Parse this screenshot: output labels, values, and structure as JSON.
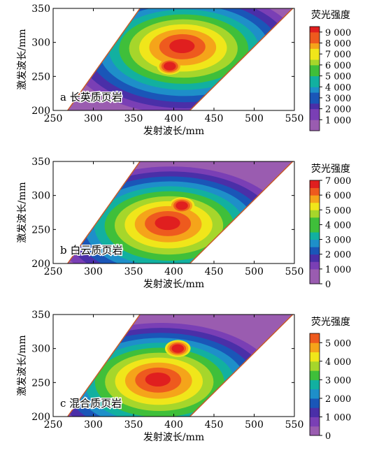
{
  "chart_data": [
    {
      "type": "heatmap",
      "subtype": "excitation-emission matrix contour",
      "panel_label": "a 长英质页岩",
      "xlabel": "发射波长/mm",
      "ylabel": "激发波长/mm",
      "xlim": [
        250,
        550
      ],
      "ylim": [
        200,
        350
      ],
      "x_ticks": [
        250,
        300,
        350,
        400,
        450,
        500,
        550
      ],
      "y_ticks": [
        200,
        250,
        300,
        350
      ],
      "x_tick_labels": [
        "250",
        "300",
        "350",
        "400",
        "450",
        "500",
        "550"
      ],
      "y_tick_labels": [
        "200",
        "250",
        "300",
        "350"
      ],
      "data_region": "parallelogram between emission = excitation + (85..115) and emission = excitation + (195..230) nm",
      "colorbar": {
        "title": "荧光强度",
        "min": 0,
        "max": 9500,
        "tick_values": [
          1000,
          2000,
          3000,
          4000,
          5000,
          6000,
          7000,
          8000,
          9000
        ],
        "tick_labels": [
          "1 000",
          "2 000",
          "3 000",
          "4 000",
          "5 000",
          "6 000",
          "7 000",
          "8 000",
          "9 000"
        ]
      },
      "peak": {
        "emission": 410,
        "excitation": 295,
        "intensity": 9300
      },
      "secondary_peak": {
        "emission": 395,
        "excitation": 265,
        "intensity": 8000
      },
      "grid": false
    },
    {
      "type": "heatmap",
      "subtype": "excitation-emission matrix contour",
      "panel_label": "b 白云质页岩",
      "xlabel": "发射波长/mm",
      "ylabel": "激发波长/mm",
      "xlim": [
        250,
        550
      ],
      "ylim": [
        200,
        350
      ],
      "x_ticks": [
        250,
        300,
        350,
        400,
        450,
        500,
        550
      ],
      "y_ticks": [
        200,
        250,
        300,
        350
      ],
      "x_tick_labels": [
        "250",
        "300",
        "350",
        "400",
        "450",
        "500",
        "550"
      ],
      "y_tick_labels": [
        "200",
        "250",
        "300",
        "350"
      ],
      "colorbar": {
        "title": "荧光强度",
        "min": 0,
        "max": 7000,
        "tick_values": [
          0,
          1000,
          2000,
          3000,
          4000,
          5000,
          6000,
          7000
        ],
        "tick_labels": [
          "0",
          "1 000",
          "2 000",
          "3 000",
          "4 000",
          "5 000",
          "6 000",
          "7 000"
        ]
      },
      "peak": {
        "emission": 392,
        "excitation": 260,
        "intensity": 6700
      },
      "secondary_peak": {
        "emission": 410,
        "excitation": 285,
        "intensity": 5600
      },
      "grid": false
    },
    {
      "type": "heatmap",
      "subtype": "excitation-emission matrix contour",
      "panel_label": "c 混合质页岩",
      "xlabel": "发射波长/mm",
      "ylabel": "激发波长/mm",
      "xlim": [
        250,
        550
      ],
      "ylim": [
        200,
        350
      ],
      "x_ticks": [
        250,
        300,
        350,
        400,
        450,
        500,
        550
      ],
      "y_ticks": [
        200,
        250,
        300,
        350
      ],
      "x_tick_labels": [
        "250",
        "300",
        "350",
        "400",
        "450",
        "500",
        "550"
      ],
      "y_tick_labels": [
        "200",
        "250",
        "300",
        "350"
      ],
      "colorbar": {
        "title": "荧光强度",
        "min": 0,
        "max": 5500,
        "tick_values": [
          0,
          1000,
          2000,
          3000,
          4000,
          5000
        ],
        "tick_labels": [
          "0",
          "1 000",
          "2 000",
          "3 000",
          "4 000",
          "5 000"
        ]
      },
      "peak": {
        "emission": 380,
        "excitation": 255,
        "intensity": 5300
      },
      "secondary_peak": {
        "emission": 405,
        "excitation": 300,
        "intensity": 4200
      },
      "grid": false
    }
  ],
  "colors": {
    "palette": [
      "#9a5cb0",
      "#7a3fb5",
      "#4a2fa8",
      "#1a56b8",
      "#1e8fc9",
      "#12b0a0",
      "#3fbf3a",
      "#a6d62b",
      "#f0e61a",
      "#f5a41a",
      "#ee5a1e",
      "#e01f1f"
    ],
    "boundary_line": "#c85a28",
    "axis": "#000000"
  }
}
